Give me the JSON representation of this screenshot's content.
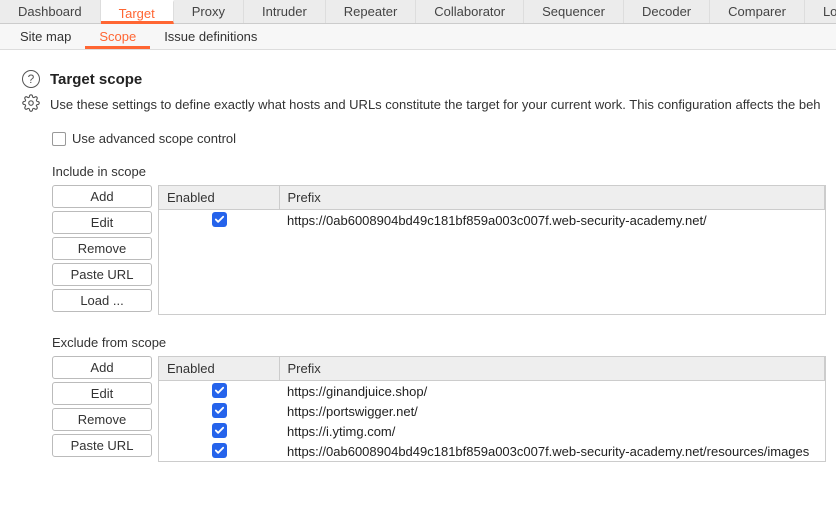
{
  "tabs": {
    "main": [
      "Dashboard",
      "Target",
      "Proxy",
      "Intruder",
      "Repeater",
      "Collaborator",
      "Sequencer",
      "Decoder",
      "Comparer",
      "Logger"
    ],
    "mainActiveIndex": 1,
    "sub": [
      "Site map",
      "Scope",
      "Issue definitions"
    ],
    "subActiveIndex": 1
  },
  "heading": "Target scope",
  "description": "Use these settings to define exactly what hosts and URLs constitute the target for your current work. This configuration affects the beh",
  "advancedLabel": "Use advanced scope control",
  "advancedChecked": false,
  "include": {
    "sectionLabel": "Include in scope",
    "columns": {
      "enabled": "Enabled",
      "prefix": "Prefix"
    },
    "buttons": [
      "Add",
      "Edit",
      "Remove",
      "Paste URL",
      "Load ..."
    ],
    "rows": [
      {
        "enabled": true,
        "prefix": "https://0ab6008904bd49c181bf859a003c007f.web-security-academy.net/"
      }
    ]
  },
  "exclude": {
    "sectionLabel": "Exclude from scope",
    "columns": {
      "enabled": "Enabled",
      "prefix": "Prefix"
    },
    "buttons": [
      "Add",
      "Edit",
      "Remove",
      "Paste URL"
    ],
    "rows": [
      {
        "enabled": true,
        "prefix": "https://ginandjuice.shop/"
      },
      {
        "enabled": true,
        "prefix": "https://portswigger.net/"
      },
      {
        "enabled": true,
        "prefix": "https://i.ytimg.com/"
      },
      {
        "enabled": true,
        "prefix": "https://0ab6008904bd49c181bf859a003c007f.web-security-academy.net/resources/images"
      }
    ]
  },
  "colors": {
    "accent": "#ff6633",
    "checkbox": "#2563eb"
  }
}
